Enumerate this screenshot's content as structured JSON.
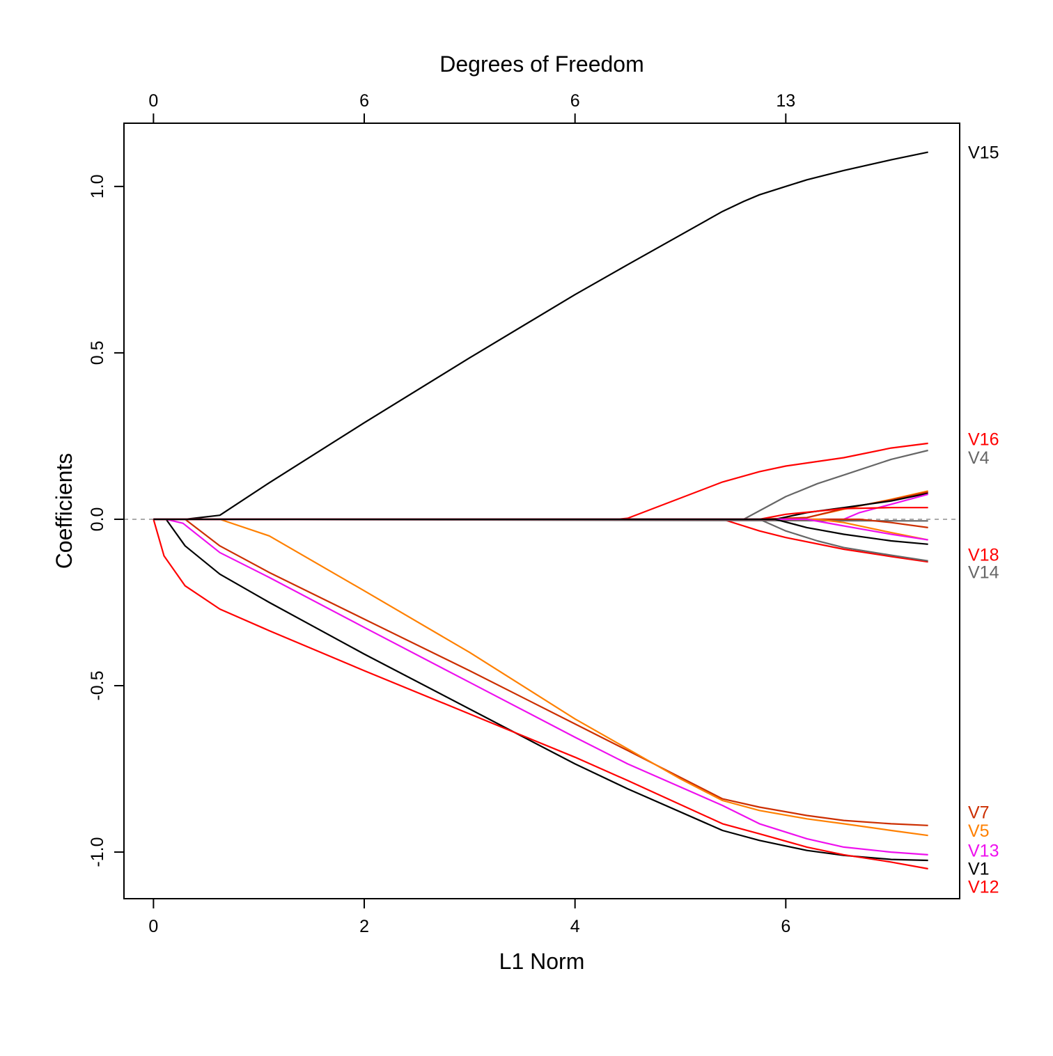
{
  "chart_data": {
    "type": "line",
    "title": "",
    "xlabel": "L1 Norm",
    "ylabel": "Coefficients",
    "top_axis_label": "Degrees of Freedom",
    "xlim": [
      -0.28,
      7.65
    ],
    "ylim": [
      -1.14,
      1.19
    ],
    "x_ticks": [
      0,
      2,
      4,
      6
    ],
    "x_tick_labels": [
      "0",
      "2",
      "4",
      "6"
    ],
    "y_ticks": [
      -1.0,
      -0.5,
      0.0,
      0.5,
      1.0
    ],
    "y_tick_labels": [
      "-1.0",
      "-0.5",
      "0.0",
      "0.5",
      "1.0"
    ],
    "top_ticks": [
      0,
      2,
      4,
      6
    ],
    "top_tick_labels": [
      "0",
      "6",
      "6",
      "13"
    ],
    "zero_line": true,
    "grid": false,
    "series": [
      {
        "name": "V15",
        "color": "#000000",
        "x": [
          0,
          0.3,
          0.63,
          1.1,
          2,
          3,
          4,
          4.5,
          5.4,
          5.6,
          5.75,
          6,
          6.2,
          6.55,
          7,
          7.35
        ],
        "y": [
          0,
          0,
          0.012,
          0.11,
          0.29,
          0.485,
          0.675,
          0.765,
          0.925,
          0.955,
          0.975,
          1.0,
          1.02,
          1.048,
          1.08,
          1.103
        ]
      },
      {
        "name": "V16",
        "color": "#ff0000",
        "x": [
          0,
          4.4,
          4.5,
          5.4,
          5.75,
          6,
          6.55,
          7,
          7.35
        ],
        "y": [
          0,
          0,
          0.003,
          0.112,
          0.143,
          0.16,
          0.185,
          0.214,
          0.228
        ]
      },
      {
        "name": "V4",
        "color": "#666666",
        "x": [
          0,
          5.6,
          6.0,
          6.3,
          6.55,
          7.0,
          7.35
        ],
        "y": [
          0,
          0,
          0.068,
          0.107,
          0.133,
          0.18,
          0.207
        ]
      },
      {
        "name": "V18",
        "color": "#ff0000",
        "x": [
          0,
          5.4,
          5.75,
          6.0,
          6.55,
          7.0,
          7.35
        ],
        "y": [
          0,
          0,
          -0.035,
          -0.055,
          -0.09,
          -0.112,
          -0.128
        ]
      },
      {
        "name": "V14",
        "color": "#666666",
        "x": [
          0,
          5.75,
          6.0,
          6.3,
          6.55,
          7.0,
          7.35
        ],
        "y": [
          0,
          0,
          -0.035,
          -0.065,
          -0.085,
          -0.108,
          -0.125
        ]
      },
      {
        "name": "V7",
        "color": "#cc2e00",
        "x": [
          0,
          0.3,
          0.63,
          1.1,
          2,
          3,
          4,
          4.5,
          5.4,
          5.75,
          6.2,
          6.55,
          7,
          7.35
        ],
        "y": [
          0,
          0,
          -0.08,
          -0.16,
          -0.3,
          -0.455,
          -0.615,
          -0.695,
          -0.84,
          -0.865,
          -0.89,
          -0.905,
          -0.915,
          -0.92
        ]
      },
      {
        "name": "V5",
        "color": "#ff8000",
        "x": [
          0,
          0.63,
          1.1,
          2,
          3,
          4,
          4.5,
          5,
          5.4,
          5.75,
          6.2,
          6.55,
          7,
          7.35
        ],
        "y": [
          0,
          0,
          -0.05,
          -0.215,
          -0.4,
          -0.6,
          -0.69,
          -0.78,
          -0.845,
          -0.875,
          -0.9,
          -0.915,
          -0.935,
          -0.95
        ]
      },
      {
        "name": "V13",
        "color": "#ee10ee",
        "x": [
          0,
          0.12,
          0.28,
          0.63,
          1.1,
          2,
          3,
          4,
          4.5,
          5.4,
          5.75,
          6.2,
          6.55,
          7,
          7.35
        ],
        "y": [
          0,
          0,
          -0.012,
          -0.1,
          -0.175,
          -0.325,
          -0.49,
          -0.655,
          -0.735,
          -0.86,
          -0.915,
          -0.96,
          -0.985,
          -1.0,
          -1.008
        ]
      },
      {
        "name": "V1",
        "color": "#000000",
        "x": [
          0,
          0.12,
          0.3,
          0.63,
          1.1,
          2,
          3,
          4,
          4.5,
          5.4,
          5.75,
          6.2,
          6.55,
          7,
          7.35
        ],
        "y": [
          0,
          0,
          -0.08,
          -0.165,
          -0.25,
          -0.405,
          -0.57,
          -0.735,
          -0.81,
          -0.935,
          -0.965,
          -0.995,
          -1.01,
          -1.022,
          -1.025
        ]
      },
      {
        "name": "V12",
        "color": "#ff0000",
        "x": [
          0,
          0.1,
          0.3,
          0.63,
          1.1,
          2,
          3,
          4,
          4.5,
          5.4,
          5.75,
          6.2,
          6.55,
          7,
          7.35
        ],
        "y": [
          0,
          -0.11,
          -0.2,
          -0.27,
          -0.335,
          -0.455,
          -0.585,
          -0.715,
          -0.785,
          -0.915,
          -0.945,
          -0.985,
          -1.008,
          -1.03,
          -1.05
        ]
      },
      {
        "name": "",
        "color": "#ff8000",
        "x": [
          0,
          5.75,
          6.2,
          6.55,
          7,
          7.35
        ],
        "y": [
          0,
          0,
          0.005,
          0.03,
          0.06,
          0.085
        ]
      },
      {
        "name": "",
        "color": "#cc2e00",
        "x": [
          0,
          5.75,
          6.2,
          6.55,
          7,
          7.35
        ],
        "y": [
          0,
          0,
          0.005,
          0.032,
          0.058,
          0.082
        ]
      },
      {
        "name": "",
        "color": "#000000",
        "x": [
          0,
          5.9,
          6.2,
          6.55,
          7,
          7.35
        ],
        "y": [
          0,
          0,
          0.02,
          0.035,
          0.055,
          0.078
        ]
      },
      {
        "name": "",
        "color": "#ee10ee",
        "x": [
          0,
          6.2,
          6.55,
          6.7,
          7,
          7.35
        ],
        "y": [
          0,
          0,
          0,
          0.02,
          0.045,
          0.075
        ]
      },
      {
        "name": "",
        "color": "#ff0000",
        "x": [
          0,
          5.75,
          6.0,
          6.55,
          7,
          7.35
        ],
        "y": [
          0,
          0,
          0.015,
          0.032,
          0.035,
          0.035
        ]
      },
      {
        "name": "",
        "color": "#666666",
        "x": [
          0,
          7.35
        ],
        "y": [
          0,
          -0.005
        ]
      },
      {
        "name": "",
        "color": "#cc2e00",
        "x": [
          0,
          6.7,
          7,
          7.35
        ],
        "y": [
          0,
          0,
          -0.01,
          -0.025
        ]
      },
      {
        "name": "",
        "color": "#ff8000",
        "x": [
          0,
          6.3,
          6.55,
          7,
          7.35
        ],
        "y": [
          0,
          0,
          -0.01,
          -0.04,
          -0.062
        ]
      },
      {
        "name": "",
        "color": "#ee10ee",
        "x": [
          0,
          6.2,
          6.55,
          7,
          7.35
        ],
        "y": [
          0,
          0,
          -0.02,
          -0.045,
          -0.062
        ]
      },
      {
        "name": "",
        "color": "#000000",
        "x": [
          0,
          5.9,
          6.2,
          6.55,
          7,
          7.35
        ],
        "y": [
          0,
          0,
          -0.025,
          -0.045,
          -0.065,
          -0.075
        ]
      }
    ],
    "end_labels": [
      {
        "text": "V15",
        "color": "#000000",
        "y": 1.103
      },
      {
        "text": "V16",
        "color": "#ff0000",
        "y": 0.241
      },
      {
        "text": "V4",
        "color": "#666666",
        "y": 0.186
      },
      {
        "text": "V18",
        "color": "#ff0000",
        "y": -0.106
      },
      {
        "text": "V14",
        "color": "#666666",
        "y": -0.158
      },
      {
        "text": "V7",
        "color": "#cc2e00",
        "y": -0.88
      },
      {
        "text": "V5",
        "color": "#ff8000",
        "y": -0.935
      },
      {
        "text": "V13",
        "color": "#ee10ee",
        "y": -0.995
      },
      {
        "text": "V1",
        "color": "#000000",
        "y": -1.049
      },
      {
        "text": "V12",
        "color": "#ff0000",
        "y": -1.103
      }
    ]
  }
}
